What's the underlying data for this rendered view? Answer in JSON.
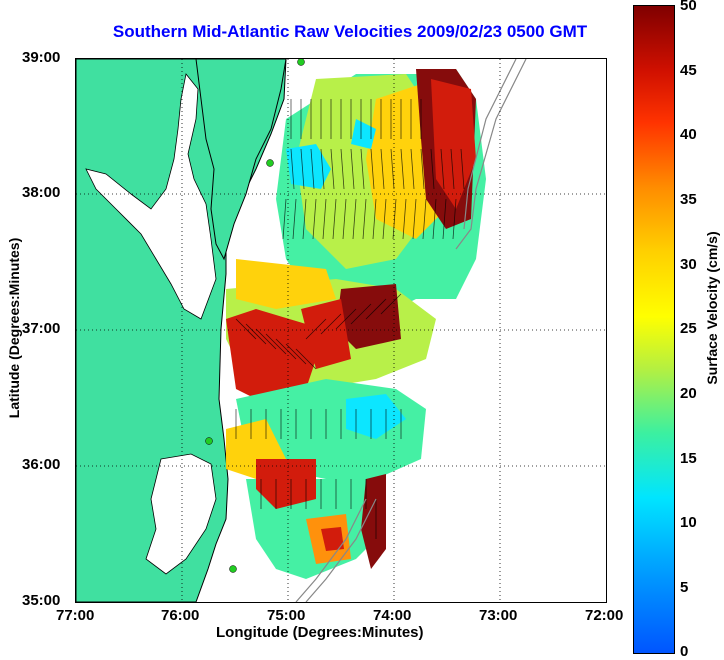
{
  "title": "Southern Mid-Atlantic Raw Velocities 2009/02/23 0500 GMT",
  "axes": {
    "xlabel": "Longitude (Degrees:Minutes)",
    "ylabel": "Latitude (Degrees:Minutes)",
    "x_ticks": [
      "77:00",
      "76:00",
      "75:00",
      "74:00",
      "73:00",
      "72:00"
    ],
    "y_ticks": [
      "39:00",
      "38:00",
      "37:00",
      "36:00",
      "35:00"
    ],
    "x_range": [
      -77,
      -72
    ],
    "y_range": [
      35,
      39
    ],
    "grid": "dotted"
  },
  "colorbar": {
    "title": "Surface Velocity (cm/s)",
    "ticks": [
      "50",
      "45",
      "40",
      "35",
      "30",
      "25",
      "20",
      "15",
      "10",
      "5",
      "0"
    ],
    "range": [
      0,
      50
    ],
    "colormap": "jet"
  },
  "colors": {
    "land": "#40e0a0",
    "coast_outline": "#000000",
    "station_marker": "#22cc22",
    "bathymetry": "#888888",
    "arrows": "#000000"
  }
}
